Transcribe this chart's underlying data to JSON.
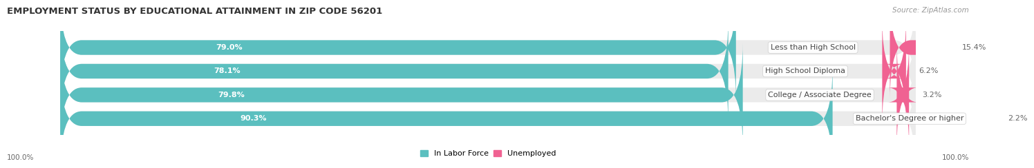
{
  "title": "EMPLOYMENT STATUS BY EDUCATIONAL ATTAINMENT IN ZIP CODE 56201",
  "source": "Source: ZipAtlas.com",
  "categories": [
    "Less than High School",
    "High School Diploma",
    "College / Associate Degree",
    "Bachelor's Degree or higher"
  ],
  "in_labor_force": [
    79.0,
    78.1,
    79.8,
    90.3
  ],
  "unemployed": [
    15.4,
    6.2,
    3.2,
    2.2
  ],
  "color_labor": "#5BBFBF",
  "color_unemployed": "#F06292",
  "color_bg_bar": "#EBEBEB",
  "color_bg_chart": "#FFFFFF",
  "bar_height": 0.62,
  "left_label": "100.0%",
  "right_label": "100.0%",
  "legend_labor": "In Labor Force",
  "legend_unemployed": "Unemployed",
  "title_fontsize": 9.5,
  "bar_label_fontsize": 8.0,
  "cat_label_fontsize": 8.0,
  "source_fontsize": 7.5,
  "pct_label_fontsize": 8.0,
  "rounding_size": 2.5
}
